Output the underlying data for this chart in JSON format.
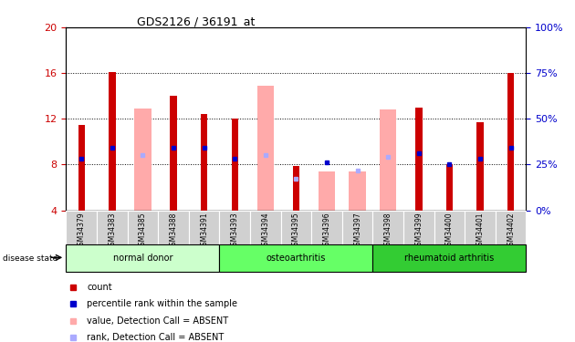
{
  "title": "GDS2126 / 36191_at",
  "samples": [
    "GSM34379",
    "GSM34383",
    "GSM34385",
    "GSM34388",
    "GSM34391",
    "GSM34393",
    "GSM34394",
    "GSM34395",
    "GSM34396",
    "GSM34397",
    "GSM34398",
    "GSM34399",
    "GSM34400",
    "GSM34401",
    "GSM34402"
  ],
  "groups": [
    {
      "label": "normal donor",
      "color": "#ccffcc",
      "start": 0,
      "end": 5
    },
    {
      "label": "osteoarthritis",
      "color": "#66ff66",
      "start": 5,
      "end": 10
    },
    {
      "label": "rheumatoid arthritis",
      "color": "#33cc33",
      "start": 10,
      "end": 15
    }
  ],
  "ylim_left": [
    4,
    20
  ],
  "ylim_right": [
    0,
    100
  ],
  "yticks_left": [
    4,
    8,
    12,
    16,
    20
  ],
  "yticks_right": [
    0,
    25,
    50,
    75,
    100
  ],
  "red_bars": [
    11.5,
    16.1,
    null,
    14.0,
    12.4,
    12.0,
    null,
    7.9,
    null,
    null,
    null,
    13.0,
    8.0,
    11.7,
    16.0
  ],
  "pink_bars": [
    null,
    null,
    12.9,
    null,
    null,
    null,
    14.9,
    null,
    7.4,
    7.4,
    12.8,
    null,
    null,
    null,
    null
  ],
  "blue_dots": [
    8.5,
    9.5,
    null,
    9.5,
    9.5,
    8.5,
    null,
    null,
    8.2,
    null,
    null,
    9.0,
    8.0,
    8.5,
    9.5
  ],
  "light_blue_dots": [
    null,
    null,
    8.8,
    null,
    null,
    null,
    8.8,
    6.8,
    null,
    7.5,
    8.7,
    null,
    null,
    null,
    null
  ],
  "ybase": 4,
  "red_color": "#cc0000",
  "pink_color": "#ffaaaa",
  "blue_color": "#0000cc",
  "light_blue_color": "#aaaaff",
  "tick_label_color_left": "#cc0000",
  "tick_label_color_right": "#0000cc",
  "legend_items": [
    {
      "color": "#cc0000",
      "label": "count"
    },
    {
      "color": "#0000cc",
      "label": "percentile rank within the sample"
    },
    {
      "color": "#ffaaaa",
      "label": "value, Detection Call = ABSENT"
    },
    {
      "color": "#aaaaff",
      "label": "rank, Detection Call = ABSENT"
    }
  ]
}
